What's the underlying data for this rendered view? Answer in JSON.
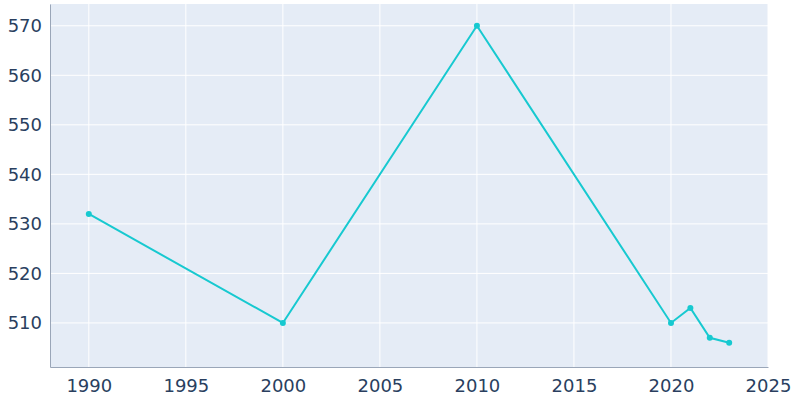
{
  "chart_data": {
    "type": "line",
    "x": [
      1990,
      2000,
      2010,
      2020,
      2021,
      2022,
      2023
    ],
    "values": [
      532,
      510,
      570,
      510,
      513,
      507,
      506
    ],
    "color": "#17c9d0",
    "xlim": [
      1988,
      2025
    ],
    "xticks": [
      1990,
      1995,
      2000,
      2005,
      2010,
      2015,
      2020,
      2025
    ],
    "ylim": [
      501.1,
      574.4
    ],
    "yticks": [
      510,
      520,
      530,
      540,
      550,
      560,
      570
    ],
    "grid": true,
    "marker": "circle"
  }
}
